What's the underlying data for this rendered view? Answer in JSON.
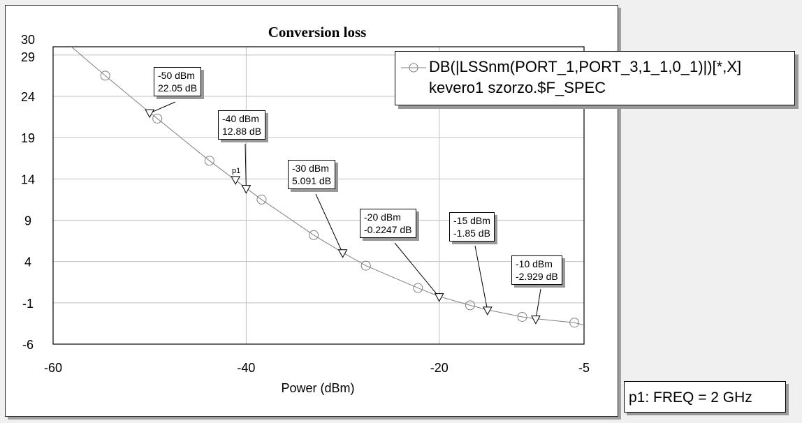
{
  "chart_data": {
    "type": "line",
    "title": "Conversion loss",
    "xlabel": "Power (dBm)",
    "ylabel": "",
    "xlim": [
      -60,
      -5
    ],
    "ylim": [
      -6,
      30
    ],
    "x_ticks": [
      "-60",
      "-40",
      "-20",
      "-5"
    ],
    "y_ticks": [
      "30",
      "29",
      "24",
      "19",
      "14",
      "9",
      "4",
      "-1",
      "-6"
    ],
    "grid": true,
    "legend_placement": "top-right",
    "series": [
      {
        "name": "DB(|LSSnm(PORT_1,PORT_3,1_1,0_1)|)[*,X]",
        "subname": "kevero1 szorzo.$F_SPEC",
        "color": "#808080",
        "marker": "circle",
        "x": [
          -58.1,
          -54.6,
          -49.2,
          -43.8,
          -38.4,
          -33.0,
          -27.6,
          -22.2,
          -16.8,
          -11.4,
          -6.0,
          -5.0
        ],
        "y": [
          30.0,
          26.5,
          21.3,
          16.2,
          11.5,
          7.2,
          3.5,
          0.8,
          -1.3,
          -2.7,
          -3.4,
          -3.7
        ]
      }
    ],
    "markers": [
      {
        "x": -50,
        "y": 22.05,
        "label_x": "-50 dBm",
        "label_y": "22.05 dB"
      },
      {
        "x": -40,
        "y": 12.88,
        "label_x": "-40 dBm",
        "label_y": "12.88 dB"
      },
      {
        "x": -30,
        "y": 5.091,
        "label_x": "-30 dBm",
        "label_y": "5.091 dB"
      },
      {
        "x": -20,
        "y": -0.2247,
        "label_x": "-20 dBm",
        "label_y": "-0.2247 dB"
      },
      {
        "x": -15,
        "y": -1.85,
        "label_x": "-15 dBm",
        "label_y": "-1.85 dB"
      },
      {
        "x": -10,
        "y": -2.929,
        "label_x": "-10 dBm",
        "label_y": "-2.929 dB"
      }
    ],
    "p1_marker": {
      "name": "p1",
      "x": -41.1,
      "y": 13.7,
      "info": "p1: FREQ = 2 GHz"
    }
  }
}
